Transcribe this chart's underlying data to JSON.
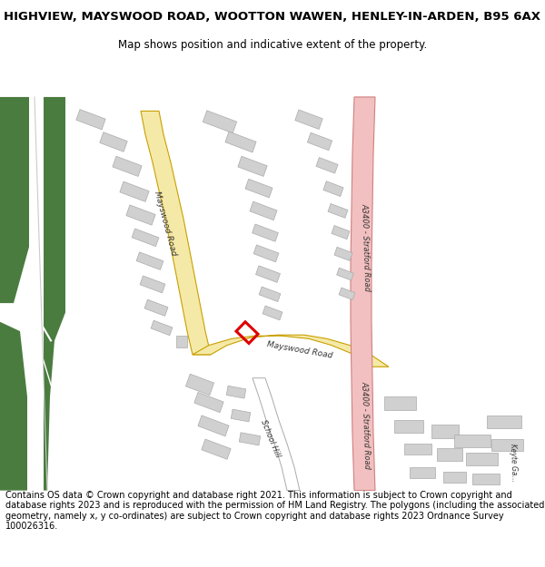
{
  "title_line1": "HIGHVIEW, MAYSWOOD ROAD, WOOTTON WAWEN, HENLEY-IN-ARDEN, B95 6AX",
  "title_line2": "Map shows position and indicative extent of the property.",
  "footer_text": "Contains OS data © Crown copyright and database right 2021. This information is subject to Crown copyright and database rights 2023 and is reproduced with the permission of HM Land Registry. The polygons (including the associated geometry, namely x, y co-ordinates) are subject to Crown copyright and database rights 2023 Ordnance Survey 100026316.",
  "bg_color": "#ffffff",
  "green1_color": "#4a7c3f",
  "green2_color": "#4a7c3f",
  "road_yellow_fill": "#f5e9a8",
  "road_yellow_edge": "#c8a000",
  "road_pink_fill": "#f2c0c0",
  "road_pink_edge": "#d08080",
  "road_white_fill": "#ffffff",
  "road_white_edge": "#aaaaaa",
  "building_fill": "#d0d0d0",
  "building_edge": "#aaaaaa",
  "red_outline": "#dd0000",
  "label_color": "#333333"
}
